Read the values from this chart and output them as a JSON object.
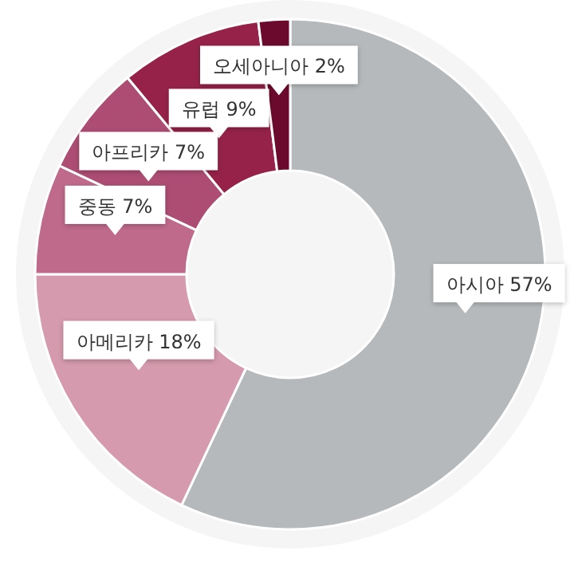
{
  "chart_data": {
    "type": "donut",
    "categories": [
      "아시아",
      "아메리카",
      "중동",
      "아프리카",
      "유럽",
      "오세아니아"
    ],
    "values": [
      57,
      18,
      7,
      7,
      9,
      2
    ],
    "value_labels": [
      "57%",
      "18%",
      "7%",
      "7%",
      "9%",
      "2%"
    ],
    "colors": [
      "#b5b9bb",
      "#d59aad",
      "#c06a8b",
      "#ad4d73",
      "#962249",
      "#6b0a2c"
    ]
  }
}
